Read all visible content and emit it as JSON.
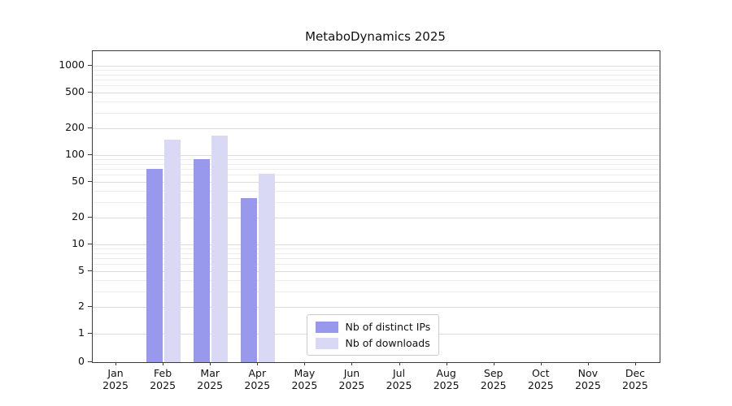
{
  "chart_data": {
    "type": "bar",
    "title": "MetaboDynamics 2025",
    "categories": [
      "Jan",
      "Feb",
      "Mar",
      "Apr",
      "May",
      "Jun",
      "Jul",
      "Aug",
      "Sep",
      "Oct",
      "Nov",
      "Dec"
    ],
    "year_label": "2025",
    "series": [
      {
        "name": "Nb of distinct IPs",
        "color": "#9898ec",
        "values": [
          0,
          70,
          90,
          33,
          0,
          0,
          0,
          0,
          0,
          0,
          0,
          0
        ]
      },
      {
        "name": "Nb of downloads",
        "color": "#d9d9f6",
        "values": [
          0,
          150,
          165,
          62,
          0,
          0,
          0,
          0,
          0,
          0,
          0,
          0
        ]
      }
    ],
    "y_axis": {
      "scale": "symlog",
      "major_ticks": [
        0,
        1,
        2,
        5,
        10,
        20,
        50,
        100,
        200,
        500,
        1000
      ],
      "minor_ticks": [
        3,
        4,
        6,
        7,
        8,
        9,
        30,
        40,
        60,
        70,
        80,
        90,
        300,
        400,
        600,
        700,
        800,
        900
      ],
      "ylim": [
        0,
        1400
      ]
    },
    "grid": {
      "major_color": "#dcdcdc",
      "minor_color": "#ececec"
    },
    "legend_position": "lower center",
    "axis_color": "#3a3a3a"
  }
}
